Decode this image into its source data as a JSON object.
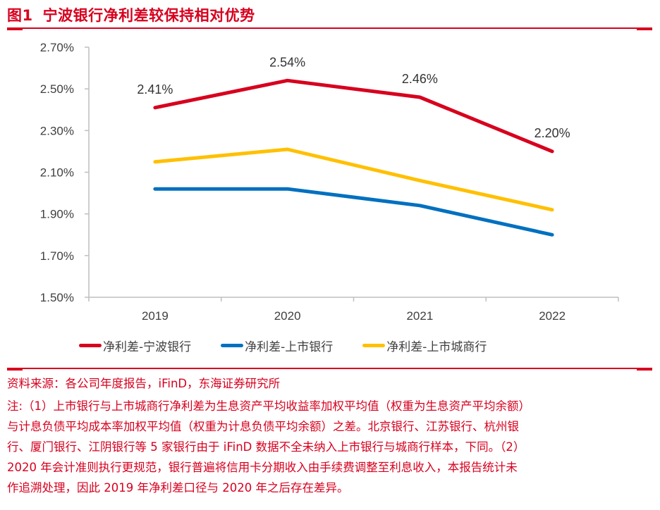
{
  "header": {
    "figure_number": "图1",
    "title": "宁波银行净利差较保持相对优势"
  },
  "colors": {
    "accent": "#d7001e",
    "series_ningbo": "#d7001e",
    "series_listed": "#0070c0",
    "series_city": "#ffc000",
    "axis": "#bfbfbf",
    "text": "#404040"
  },
  "chart_data": {
    "type": "line",
    "title": "宁波银行净利差较保持相对优势",
    "xlabel": "",
    "ylabel": "",
    "categories": [
      "2019",
      "2020",
      "2021",
      "2022"
    ],
    "ylim": [
      1.5,
      2.7
    ],
    "yticks": [
      1.5,
      1.7,
      1.9,
      2.1,
      2.3,
      2.5,
      2.7
    ],
    "ytick_labels": [
      "1.50%",
      "1.70%",
      "1.90%",
      "2.10%",
      "2.30%",
      "2.50%",
      "2.70%"
    ],
    "grid": false,
    "legend_position": "bottom",
    "series": [
      {
        "name": "净利差-宁波银行",
        "color": "#d7001e",
        "values": [
          2.41,
          2.54,
          2.46,
          2.2
        ],
        "data_labels": [
          "2.41%",
          "2.54%",
          "2.46%",
          "2.20%"
        ]
      },
      {
        "name": "净利差-上市银行",
        "color": "#0070c0",
        "values": [
          2.02,
          2.02,
          1.94,
          1.8
        ]
      },
      {
        "name": "净利差-上市城商行",
        "color": "#ffc000",
        "values": [
          2.15,
          2.21,
          2.06,
          1.92
        ]
      }
    ]
  },
  "footer": {
    "source": "资料来源：各公司年度报告，iFinD，东海证券研究所",
    "notes": [
      "注:（1）上市银行与上市城商行净利差为生息资产平均收益率加权平均值（权重为生息资产平均余额）",
      "与计息负债平均成本率加权平均值（权重为计息负债平均余额）之差。北京银行、江苏银行、杭州银",
      "行、厦门银行、江阴银行等 5 家银行由于 iFinD 数据不全未纳入上市银行与城商行样本，下同。（2）",
      "2020 年会计准则执行更规范，银行普遍将信用卡分期收入由手续费调整至利息收入，本报告统计未",
      "作追溯处理，因此 2019 年净利差口径与 2020 年之后存在差异。"
    ]
  }
}
